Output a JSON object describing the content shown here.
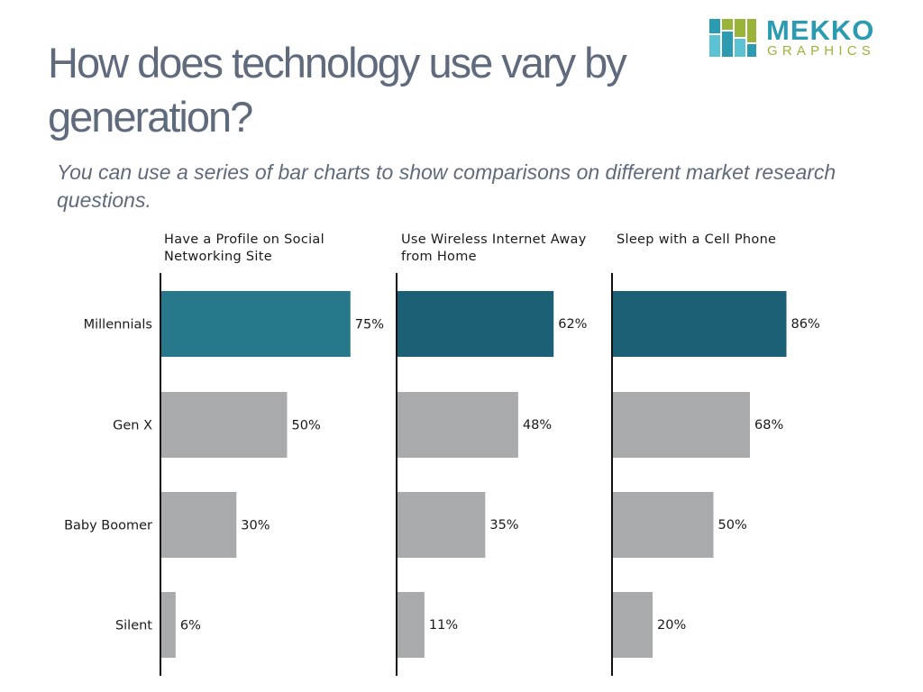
{
  "title": "How does technology use vary by generation?",
  "subtitle": "You can use a series of bar charts to show comparisons on different market research questions.",
  "logo": {
    "name_top": "MEKKO",
    "name_bottom": "GRAPHICS"
  },
  "colors": {
    "highlight": "#28788c",
    "highlight_dark": "#1c6075",
    "neutral": "#a9aaab",
    "axis": "#111111",
    "text": "#1a1a1a",
    "title": "#5f6b7c",
    "logo_blue": "#2a9bb0",
    "logo_green": "#9ab43a"
  },
  "chart_data": [
    {
      "type": "bar",
      "orientation": "horizontal",
      "title": "Have a Profile on Social Networking Site",
      "categories": [
        "Millennials",
        "Gen X",
        "Baby Boomer",
        "Silent"
      ],
      "values": [
        75,
        50,
        30,
        6
      ],
      "labels": [
        "75%",
        "50%",
        "30%",
        "6%"
      ],
      "unit": "%",
      "highlight_index": 0,
      "xlim": [
        0,
        100
      ]
    },
    {
      "type": "bar",
      "orientation": "horizontal",
      "title": "Use Wireless Internet Away from Home",
      "categories": [
        "Millennials",
        "Gen X",
        "Baby Boomer",
        "Silent"
      ],
      "values": [
        62,
        48,
        35,
        11
      ],
      "labels": [
        "62%",
        "48%",
        "35%",
        "11%"
      ],
      "unit": "%",
      "highlight_index": 0,
      "xlim": [
        0,
        100
      ]
    },
    {
      "type": "bar",
      "orientation": "horizontal",
      "title": "Sleep with a Cell Phone",
      "categories": [
        "Millennials",
        "Gen X",
        "Baby Boomer",
        "Silent"
      ],
      "values": [
        86,
        68,
        50,
        20
      ],
      "labels": [
        "86%",
        "68%",
        "50%",
        "20%"
      ],
      "unit": "%",
      "highlight_index": 0,
      "xlim": [
        0,
        100
      ]
    }
  ]
}
